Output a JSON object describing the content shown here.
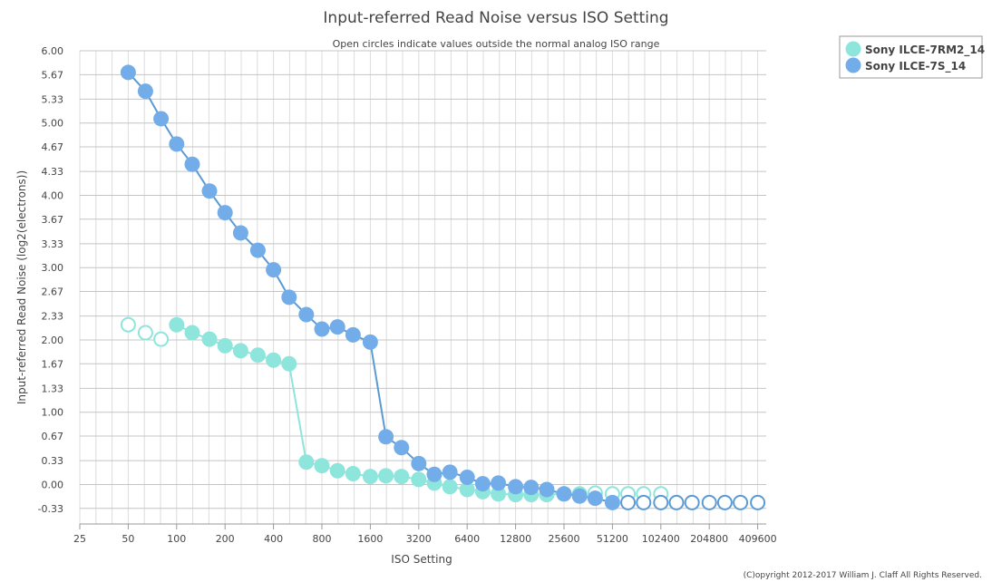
{
  "chart_data": {
    "type": "line",
    "title": "Input-referred Read Noise versus ISO Setting",
    "subtitle": "Open circles indicate values outside the normal analog ISO range",
    "xlabel": "ISO Setting",
    "ylabel": "Input-referred Read Noise (log2(electrons))",
    "x_scale": "log2",
    "xlim": [
      25,
      460000
    ],
    "ylim": [
      -0.55,
      6.0
    ],
    "x_ticks": [
      "25",
      "50",
      "100",
      "200",
      "400",
      "800",
      "1600",
      "3200",
      "6400",
      "12800",
      "25600",
      "51200",
      "102400",
      "204800",
      "409600"
    ],
    "y_ticks": [
      "6.00",
      "5.67",
      "5.33",
      "5.00",
      "4.67",
      "4.33",
      "4.00",
      "3.67",
      "3.33",
      "3.00",
      "2.67",
      "2.33",
      "2.00",
      "1.67",
      "1.33",
      "1.00",
      "0.67",
      "0.33",
      "0.00",
      "-0.33"
    ],
    "grid": true,
    "legend_position": "top-right",
    "copyright": "(C)opyright 2012-2017 William J. Claff All Rights Reserved.",
    "series": [
      {
        "name": "Sony ILCE-7RM2_14",
        "color": "#8ee5dc",
        "line_color": "#8ee5dc",
        "points": [
          {
            "iso": 50,
            "value": 2.21,
            "open": true
          },
          {
            "iso": 64,
            "value": 2.1,
            "open": true
          },
          {
            "iso": 80,
            "value": 2.01,
            "open": true
          },
          {
            "iso": 100,
            "value": 2.21
          },
          {
            "iso": 125,
            "value": 2.1
          },
          {
            "iso": 160,
            "value": 2.01
          },
          {
            "iso": 200,
            "value": 1.92
          },
          {
            "iso": 250,
            "value": 1.85
          },
          {
            "iso": 320,
            "value": 1.79
          },
          {
            "iso": 400,
            "value": 1.72
          },
          {
            "iso": 500,
            "value": 1.67
          },
          {
            "iso": 640,
            "value": 0.31
          },
          {
            "iso": 800,
            "value": 0.26
          },
          {
            "iso": 1000,
            "value": 0.19
          },
          {
            "iso": 1250,
            "value": 0.15
          },
          {
            "iso": 1600,
            "value": 0.11
          },
          {
            "iso": 2000,
            "value": 0.12
          },
          {
            "iso": 2500,
            "value": 0.11
          },
          {
            "iso": 3200,
            "value": 0.07
          },
          {
            "iso": 4000,
            "value": 0.02
          },
          {
            "iso": 5000,
            "value": -0.03
          },
          {
            "iso": 6400,
            "value": -0.07
          },
          {
            "iso": 8000,
            "value": -0.1
          },
          {
            "iso": 10000,
            "value": -0.13
          },
          {
            "iso": 12800,
            "value": -0.14
          },
          {
            "iso": 16000,
            "value": -0.14
          },
          {
            "iso": 20000,
            "value": -0.14
          },
          {
            "iso": 25600,
            "value": -0.13
          },
          {
            "iso": 32000,
            "value": -0.13
          },
          {
            "iso": 40000,
            "value": -0.12,
            "open": true
          },
          {
            "iso": 51200,
            "value": -0.13,
            "open": true
          },
          {
            "iso": 64000,
            "value": -0.13,
            "open": true
          },
          {
            "iso": 80000,
            "value": -0.13,
            "open": true
          },
          {
            "iso": 102400,
            "value": -0.13,
            "open": true
          }
        ]
      },
      {
        "name": "Sony ILCE-7S_14",
        "color": "#73ade9",
        "line_color": "#5b9bd5",
        "points": [
          {
            "iso": 50,
            "value": 5.7
          },
          {
            "iso": 64,
            "value": 5.44
          },
          {
            "iso": 80,
            "value": 5.06
          },
          {
            "iso": 100,
            "value": 4.71
          },
          {
            "iso": 125,
            "value": 4.43
          },
          {
            "iso": 160,
            "value": 4.06
          },
          {
            "iso": 200,
            "value": 3.76
          },
          {
            "iso": 250,
            "value": 3.48
          },
          {
            "iso": 320,
            "value": 3.24
          },
          {
            "iso": 400,
            "value": 2.97
          },
          {
            "iso": 500,
            "value": 2.59
          },
          {
            "iso": 640,
            "value": 2.35
          },
          {
            "iso": 800,
            "value": 2.15
          },
          {
            "iso": 1000,
            "value": 2.18
          },
          {
            "iso": 1250,
            "value": 2.07
          },
          {
            "iso": 1600,
            "value": 1.97
          },
          {
            "iso": 2000,
            "value": 0.66
          },
          {
            "iso": 2500,
            "value": 0.51
          },
          {
            "iso": 3200,
            "value": 0.29
          },
          {
            "iso": 4000,
            "value": 0.14
          },
          {
            "iso": 5000,
            "value": 0.17
          },
          {
            "iso": 6400,
            "value": 0.1
          },
          {
            "iso": 8000,
            "value": 0.01
          },
          {
            "iso": 10000,
            "value": 0.02
          },
          {
            "iso": 12800,
            "value": -0.03
          },
          {
            "iso": 16000,
            "value": -0.04
          },
          {
            "iso": 20000,
            "value": -0.07
          },
          {
            "iso": 25600,
            "value": -0.13
          },
          {
            "iso": 32000,
            "value": -0.16
          },
          {
            "iso": 40000,
            "value": -0.19
          },
          {
            "iso": 51200,
            "value": -0.25
          },
          {
            "iso": 64000,
            "value": -0.25,
            "open": true
          },
          {
            "iso": 80000,
            "value": -0.25,
            "open": true
          },
          {
            "iso": 102400,
            "value": -0.25,
            "open": true
          },
          {
            "iso": 128000,
            "value": -0.25,
            "open": true
          },
          {
            "iso": 160000,
            "value": -0.25,
            "open": true
          },
          {
            "iso": 204800,
            "value": -0.25,
            "open": true
          },
          {
            "iso": 256000,
            "value": -0.25,
            "open": true
          },
          {
            "iso": 320000,
            "value": -0.25,
            "open": true
          },
          {
            "iso": 409600,
            "value": -0.25,
            "open": true
          }
        ]
      }
    ]
  }
}
